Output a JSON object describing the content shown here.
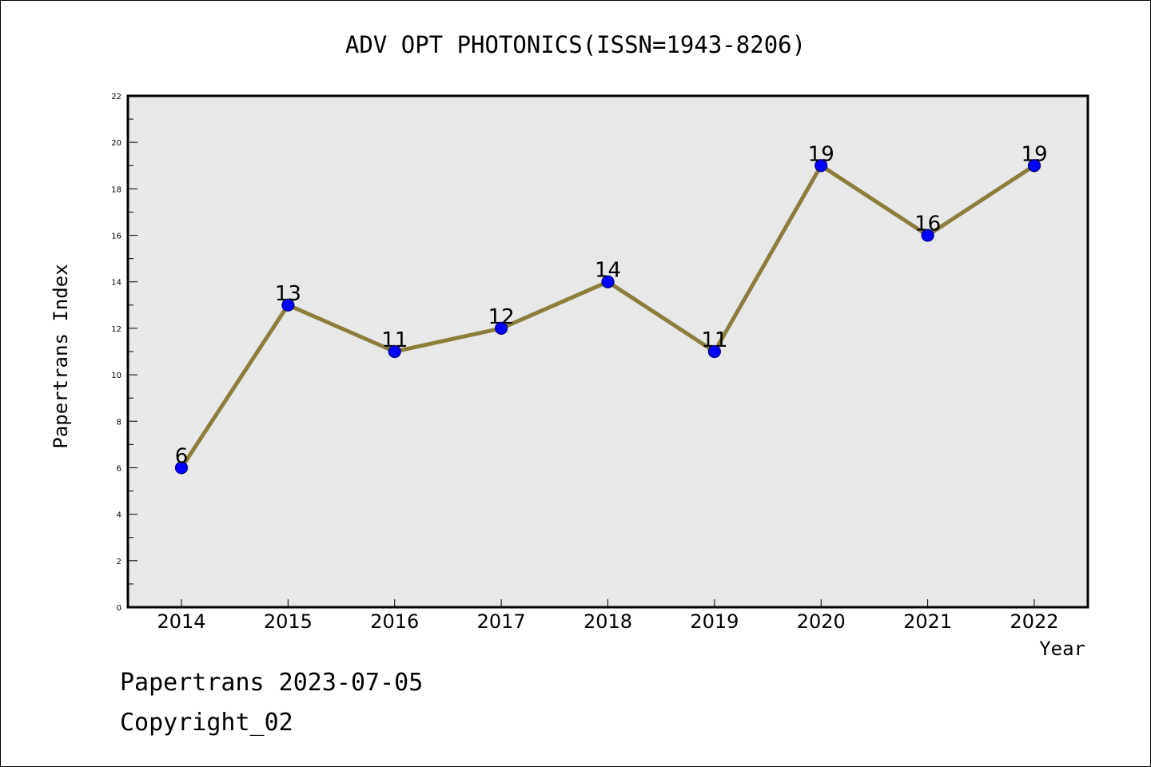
{
  "chart_data": {
    "type": "line",
    "title": "ADV OPT PHOTONICS(ISSN=1943-8206)",
    "xlabel": "Year",
    "ylabel": "Papertrans Index",
    "categories": [
      "2014",
      "2015",
      "2016",
      "2017",
      "2018",
      "2019",
      "2020",
      "2021",
      "2022"
    ],
    "values": [
      6,
      13,
      11,
      12,
      14,
      11,
      19,
      16,
      19
    ],
    "data_labels": [
      "6",
      "13",
      "11",
      "12",
      "14",
      "11",
      "19",
      "16",
      "19"
    ],
    "ylim": [
      0,
      22
    ],
    "y_ticks": [
      "0",
      "2",
      "4",
      "6",
      "8",
      "10",
      "12",
      "14",
      "16",
      "18",
      "20",
      "22"
    ],
    "grid": false,
    "legend": "none",
    "colors": {
      "line": "#8b7d3a",
      "marker_fill": "#0000ff",
      "marker_edge": "#000080",
      "plot_background": "#e8e8e8"
    }
  },
  "footer": {
    "line1": "Papertrans 2023-07-05",
    "line2": "Copyright_02"
  }
}
